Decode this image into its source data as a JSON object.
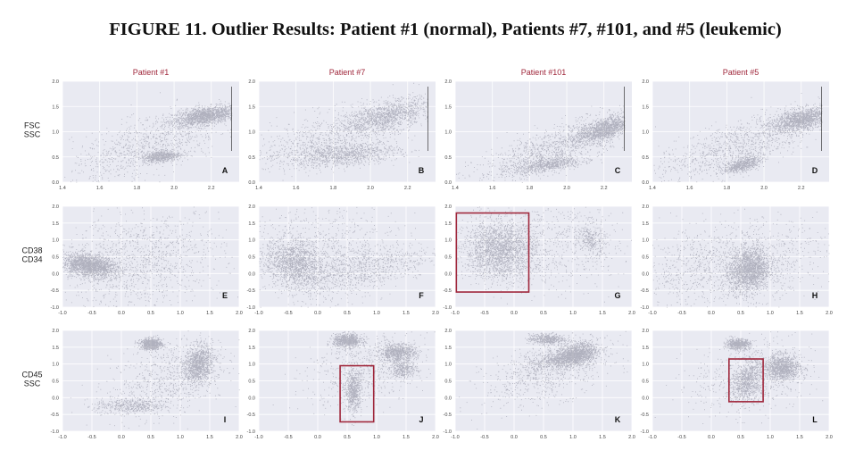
{
  "figure": {
    "title": "FIGURE 11. Outlier Results: Patient #1 (normal), Patients #7, #101, and #5 (leukemic)"
  },
  "columns": [
    "Patient #1",
    "Patient #7",
    "Patient #101",
    "Patient #5"
  ],
  "rows": [
    {
      "label_lines": [
        "FSC",
        "SSC"
      ]
    },
    {
      "label_lines": [
        "CD38",
        "CD34"
      ]
    },
    {
      "label_lines": [
        "CD45",
        "SSC"
      ]
    }
  ],
  "colors": {
    "panel_bg": "#e9eaf2",
    "grid": "#ffffff",
    "points": "#1c1c3a",
    "title_text": "#a0283c",
    "box": "#a0283c"
  },
  "chart_data": [
    {
      "type": "scatter",
      "letter": "A",
      "column": "Patient #1",
      "xlim": [
        1.4,
        2.35
      ],
      "ylim": [
        0,
        2
      ],
      "xticks": [
        "1.4",
        "1.6",
        "1.8",
        "2.0",
        "2.2"
      ],
      "yticks": [
        "0.0",
        "0.5",
        "1.0",
        "1.5",
        "2.0"
      ],
      "clusters": [
        {
          "x": 2.17,
          "y": 1.32,
          "sx": 0.09,
          "sy": 0.1,
          "rho": 0.5,
          "weight": 0.5
        },
        {
          "x": 1.93,
          "y": 0.52,
          "sx": 0.05,
          "sy": 0.055,
          "rho": 0.3,
          "weight": 0.2
        },
        {
          "x": 1.85,
          "y": 0.7,
          "sx": 0.2,
          "sy": 0.35,
          "rho": 0.6,
          "weight": 0.3
        }
      ],
      "truncate_x": 2.31,
      "boxes": []
    },
    {
      "type": "scatter",
      "letter": "B",
      "column": "Patient #7",
      "xlim": [
        1.4,
        2.35
      ],
      "ylim": [
        0,
        2
      ],
      "xticks": [
        "1.4",
        "1.6",
        "1.8",
        "2.0",
        "2.2"
      ],
      "yticks": [
        "0.0",
        "0.5",
        "1.0",
        "1.5",
        "2.0"
      ],
      "clusters": [
        {
          "x": 2.08,
          "y": 1.3,
          "sx": 0.12,
          "sy": 0.18,
          "rho": 0.6,
          "weight": 0.4
        },
        {
          "x": 1.85,
          "y": 0.55,
          "sx": 0.15,
          "sy": 0.12,
          "rho": 0.3,
          "weight": 0.35
        },
        {
          "x": 1.75,
          "y": 0.9,
          "sx": 0.25,
          "sy": 0.35,
          "rho": 0.7,
          "weight": 0.25
        }
      ],
      "truncate_x": 2.31,
      "boxes": []
    },
    {
      "type": "scatter",
      "letter": "C",
      "column": "Patient #101",
      "xlim": [
        1.4,
        2.35
      ],
      "ylim": [
        0,
        2
      ],
      "xticks": [
        "1.4",
        "1.6",
        "1.8",
        "2.0",
        "2.2"
      ],
      "yticks": [
        "0.0",
        "0.5",
        "1.0",
        "1.5",
        "2.0"
      ],
      "clusters": [
        {
          "x": 2.2,
          "y": 1.05,
          "sx": 0.07,
          "sy": 0.13,
          "rho": 0.6,
          "weight": 0.4
        },
        {
          "x": 1.9,
          "y": 0.35,
          "sx": 0.09,
          "sy": 0.08,
          "rho": 0.6,
          "weight": 0.2
        },
        {
          "x": 1.95,
          "y": 0.7,
          "sx": 0.22,
          "sy": 0.35,
          "rho": 0.8,
          "weight": 0.4
        }
      ],
      "truncate_x": 2.31,
      "boxes": []
    },
    {
      "type": "scatter",
      "letter": "D",
      "column": "Patient #5",
      "xlim": [
        1.4,
        2.35
      ],
      "ylim": [
        0,
        2
      ],
      "xticks": [
        "1.4",
        "1.6",
        "1.8",
        "2.0",
        "2.2"
      ],
      "yticks": [
        "0.0",
        "0.5",
        "1.0",
        "1.5",
        "2.0"
      ],
      "clusters": [
        {
          "x": 2.2,
          "y": 1.25,
          "sx": 0.08,
          "sy": 0.12,
          "rho": 0.5,
          "weight": 0.45
        },
        {
          "x": 1.88,
          "y": 0.35,
          "sx": 0.05,
          "sy": 0.08,
          "rho": 0.6,
          "weight": 0.2
        },
        {
          "x": 1.85,
          "y": 0.7,
          "sx": 0.22,
          "sy": 0.35,
          "rho": 0.7,
          "weight": 0.35
        }
      ],
      "truncate_x": 2.31,
      "boxes": []
    },
    {
      "type": "scatter",
      "letter": "E",
      "column": "Patient #1",
      "xlim": [
        -1,
        2
      ],
      "ylim": [
        -1,
        2
      ],
      "xticks": [
        "-1.0",
        "-0.5",
        "0.0",
        "0.5",
        "1.0",
        "1.5",
        "2.0"
      ],
      "yticks": [
        "-1.0",
        "-0.5",
        "0.0",
        "0.5",
        "1.0",
        "1.5",
        "2.0"
      ],
      "clusters": [
        {
          "x": -0.55,
          "y": 0.25,
          "sx": 0.22,
          "sy": 0.17,
          "rho": -0.3,
          "weight": 0.6
        },
        {
          "x": 0.3,
          "y": 0.4,
          "sx": 0.7,
          "sy": 0.7,
          "rho": 0.2,
          "weight": 0.4
        }
      ],
      "boxes": []
    },
    {
      "type": "scatter",
      "letter": "F",
      "column": "Patient #7",
      "xlim": [
        -1,
        2
      ],
      "ylim": [
        -1,
        2
      ],
      "xticks": [
        "-1.0",
        "-0.5",
        "0.0",
        "0.5",
        "1.0",
        "1.5",
        "2.0"
      ],
      "yticks": [
        "-1.0",
        "-0.5",
        "0.0",
        "0.5",
        "1.0",
        "1.5",
        "2.0"
      ],
      "clusters": [
        {
          "x": -0.4,
          "y": 0.3,
          "sx": 0.25,
          "sy": 0.35,
          "rho": -0.2,
          "weight": 0.45
        },
        {
          "x": 0.7,
          "y": 0.1,
          "sx": 0.6,
          "sy": 0.4,
          "rho": 0.6,
          "weight": 0.3
        },
        {
          "x": 0.0,
          "y": 0.7,
          "sx": 0.7,
          "sy": 0.7,
          "rho": 0.1,
          "weight": 0.25
        }
      ],
      "boxes": []
    },
    {
      "type": "scatter",
      "letter": "G",
      "column": "Patient #101",
      "xlim": [
        -1,
        2
      ],
      "ylim": [
        -1,
        2
      ],
      "xticks": [
        "-1.0",
        "-0.5",
        "0.0",
        "0.5",
        "1.0",
        "1.5",
        "2.0"
      ],
      "yticks": [
        "-1.0",
        "-0.5",
        "0.0",
        "0.5",
        "1.0",
        "1.5",
        "2.0"
      ],
      "clusters": [
        {
          "x": -0.25,
          "y": 0.7,
          "sx": 0.3,
          "sy": 0.42,
          "rho": 0.0,
          "weight": 0.65
        },
        {
          "x": 1.3,
          "y": 1.0,
          "sx": 0.12,
          "sy": 0.25,
          "rho": -0.3,
          "weight": 0.1
        },
        {
          "x": 0.5,
          "y": 0.9,
          "sx": 0.7,
          "sy": 0.7,
          "rho": 0.0,
          "weight": 0.25
        }
      ],
      "boxes": [
        {
          "x0": -0.98,
          "x1": 0.25,
          "y0": -0.55,
          "y1": 1.8
        }
      ]
    },
    {
      "type": "scatter",
      "letter": "H",
      "column": "Patient #5",
      "xlim": [
        -1,
        2
      ],
      "ylim": [
        -1,
        2
      ],
      "xticks": [
        "-1.0",
        "-0.5",
        "0.0",
        "0.5",
        "1.0",
        "1.5",
        "2.0"
      ],
      "yticks": [
        "-1.0",
        "-0.5",
        "0.0",
        "0.5",
        "1.0",
        "1.5",
        "2.0"
      ],
      "clusters": [
        {
          "x": 0.65,
          "y": 0.1,
          "sx": 0.17,
          "sy": 0.32,
          "rho": 0.1,
          "weight": 0.55
        },
        {
          "x": 0.3,
          "y": 0.3,
          "sx": 0.8,
          "sy": 0.6,
          "rho": 0.3,
          "weight": 0.45
        }
      ],
      "boxes": []
    },
    {
      "type": "scatter",
      "letter": "I",
      "column": "Patient #1",
      "xlim": [
        -1,
        2
      ],
      "ylim": [
        -1,
        2
      ],
      "xticks": [
        "-1.0",
        "-0.5",
        "0.0",
        "0.5",
        "1.0",
        "1.5",
        "2.0"
      ],
      "yticks": [
        "-1.0",
        "-0.5",
        "0.0",
        "0.5",
        "1.0",
        "1.5",
        "2.0"
      ],
      "clusters": [
        {
          "x": 0.5,
          "y": 1.6,
          "sx": 0.09,
          "sy": 0.08,
          "rho": 0.0,
          "weight": 0.25
        },
        {
          "x": 1.3,
          "y": 1.0,
          "sx": 0.12,
          "sy": 0.28,
          "rho": 0.2,
          "weight": 0.35
        },
        {
          "x": 0.15,
          "y": -0.25,
          "sx": 0.3,
          "sy": 0.12,
          "rho": 0.0,
          "weight": 0.15
        },
        {
          "x": 0.8,
          "y": 0.6,
          "sx": 0.5,
          "sy": 0.6,
          "rho": 0.4,
          "weight": 0.25
        }
      ],
      "boxes": []
    },
    {
      "type": "scatter",
      "letter": "J",
      "column": "Patient #7",
      "xlim": [
        -1,
        2
      ],
      "ylim": [
        -1,
        2
      ],
      "xticks": [
        "-1.0",
        "-0.5",
        "0.0",
        "0.5",
        "1.0",
        "1.5",
        "2.0"
      ],
      "yticks": [
        "-1.0",
        "-0.5",
        "0.0",
        "0.5",
        "1.0",
        "1.5",
        "2.0"
      ],
      "clusters": [
        {
          "x": 0.5,
          "y": 1.7,
          "sx": 0.12,
          "sy": 0.1,
          "rho": 0.0,
          "weight": 0.25
        },
        {
          "x": 1.35,
          "y": 1.35,
          "sx": 0.15,
          "sy": 0.13,
          "rho": 0.0,
          "weight": 0.25
        },
        {
          "x": 0.6,
          "y": 0.2,
          "sx": 0.07,
          "sy": 0.3,
          "rho": 0.0,
          "weight": 0.2
        },
        {
          "x": 1.45,
          "y": 0.85,
          "sx": 0.12,
          "sy": 0.12,
          "rho": 0.0,
          "weight": 0.1
        },
        {
          "x": 0.8,
          "y": 0.9,
          "sx": 0.5,
          "sy": 0.6,
          "rho": 0.3,
          "weight": 0.2
        }
      ],
      "boxes": [
        {
          "x0": 0.38,
          "x1": 0.95,
          "y0": -0.72,
          "y1": 0.95
        }
      ]
    },
    {
      "type": "scatter",
      "letter": "K",
      "column": "Patient #101",
      "xlim": [
        -1,
        2
      ],
      "ylim": [
        -1,
        2
      ],
      "xticks": [
        "-1.0",
        "-0.5",
        "0.0",
        "0.5",
        "1.0",
        "1.5",
        "2.0"
      ],
      "yticks": [
        "-1.0",
        "-0.5",
        "0.0",
        "0.5",
        "1.0",
        "1.5",
        "2.0"
      ],
      "clusters": [
        {
          "x": 1.05,
          "y": 1.3,
          "sx": 0.18,
          "sy": 0.17,
          "rho": 0.3,
          "weight": 0.45
        },
        {
          "x": 0.55,
          "y": 1.75,
          "sx": 0.15,
          "sy": 0.08,
          "rho": 0.0,
          "weight": 0.15
        },
        {
          "x": 0.7,
          "y": 1.1,
          "sx": 0.25,
          "sy": 0.15,
          "rho": 0.5,
          "weight": 0.15
        },
        {
          "x": 0.6,
          "y": 0.8,
          "sx": 0.55,
          "sy": 0.5,
          "rho": 0.5,
          "weight": 0.25
        }
      ],
      "boxes": []
    },
    {
      "type": "scatter",
      "letter": "L",
      "column": "Patient #5",
      "xlim": [
        -1,
        2
      ],
      "ylim": [
        -1,
        2
      ],
      "xticks": [
        "-1.0",
        "-0.5",
        "0.0",
        "0.5",
        "1.0",
        "1.5",
        "2.0"
      ],
      "yticks": [
        "-1.0",
        "-0.5",
        "0.0",
        "0.5",
        "1.0",
        "1.5",
        "2.0"
      ],
      "clusters": [
        {
          "x": 0.45,
          "y": 1.6,
          "sx": 0.1,
          "sy": 0.08,
          "rho": 0.0,
          "weight": 0.2
        },
        {
          "x": 1.2,
          "y": 0.9,
          "sx": 0.15,
          "sy": 0.18,
          "rho": 0.0,
          "weight": 0.35
        },
        {
          "x": 0.6,
          "y": 0.5,
          "sx": 0.13,
          "sy": 0.3,
          "rho": 0.3,
          "weight": 0.25
        },
        {
          "x": 0.7,
          "y": 0.6,
          "sx": 0.5,
          "sy": 0.55,
          "rho": 0.2,
          "weight": 0.2
        }
      ],
      "boxes": [
        {
          "x0": 0.3,
          "x1": 0.88,
          "y0": -0.12,
          "y1": 1.15
        }
      ]
    }
  ]
}
